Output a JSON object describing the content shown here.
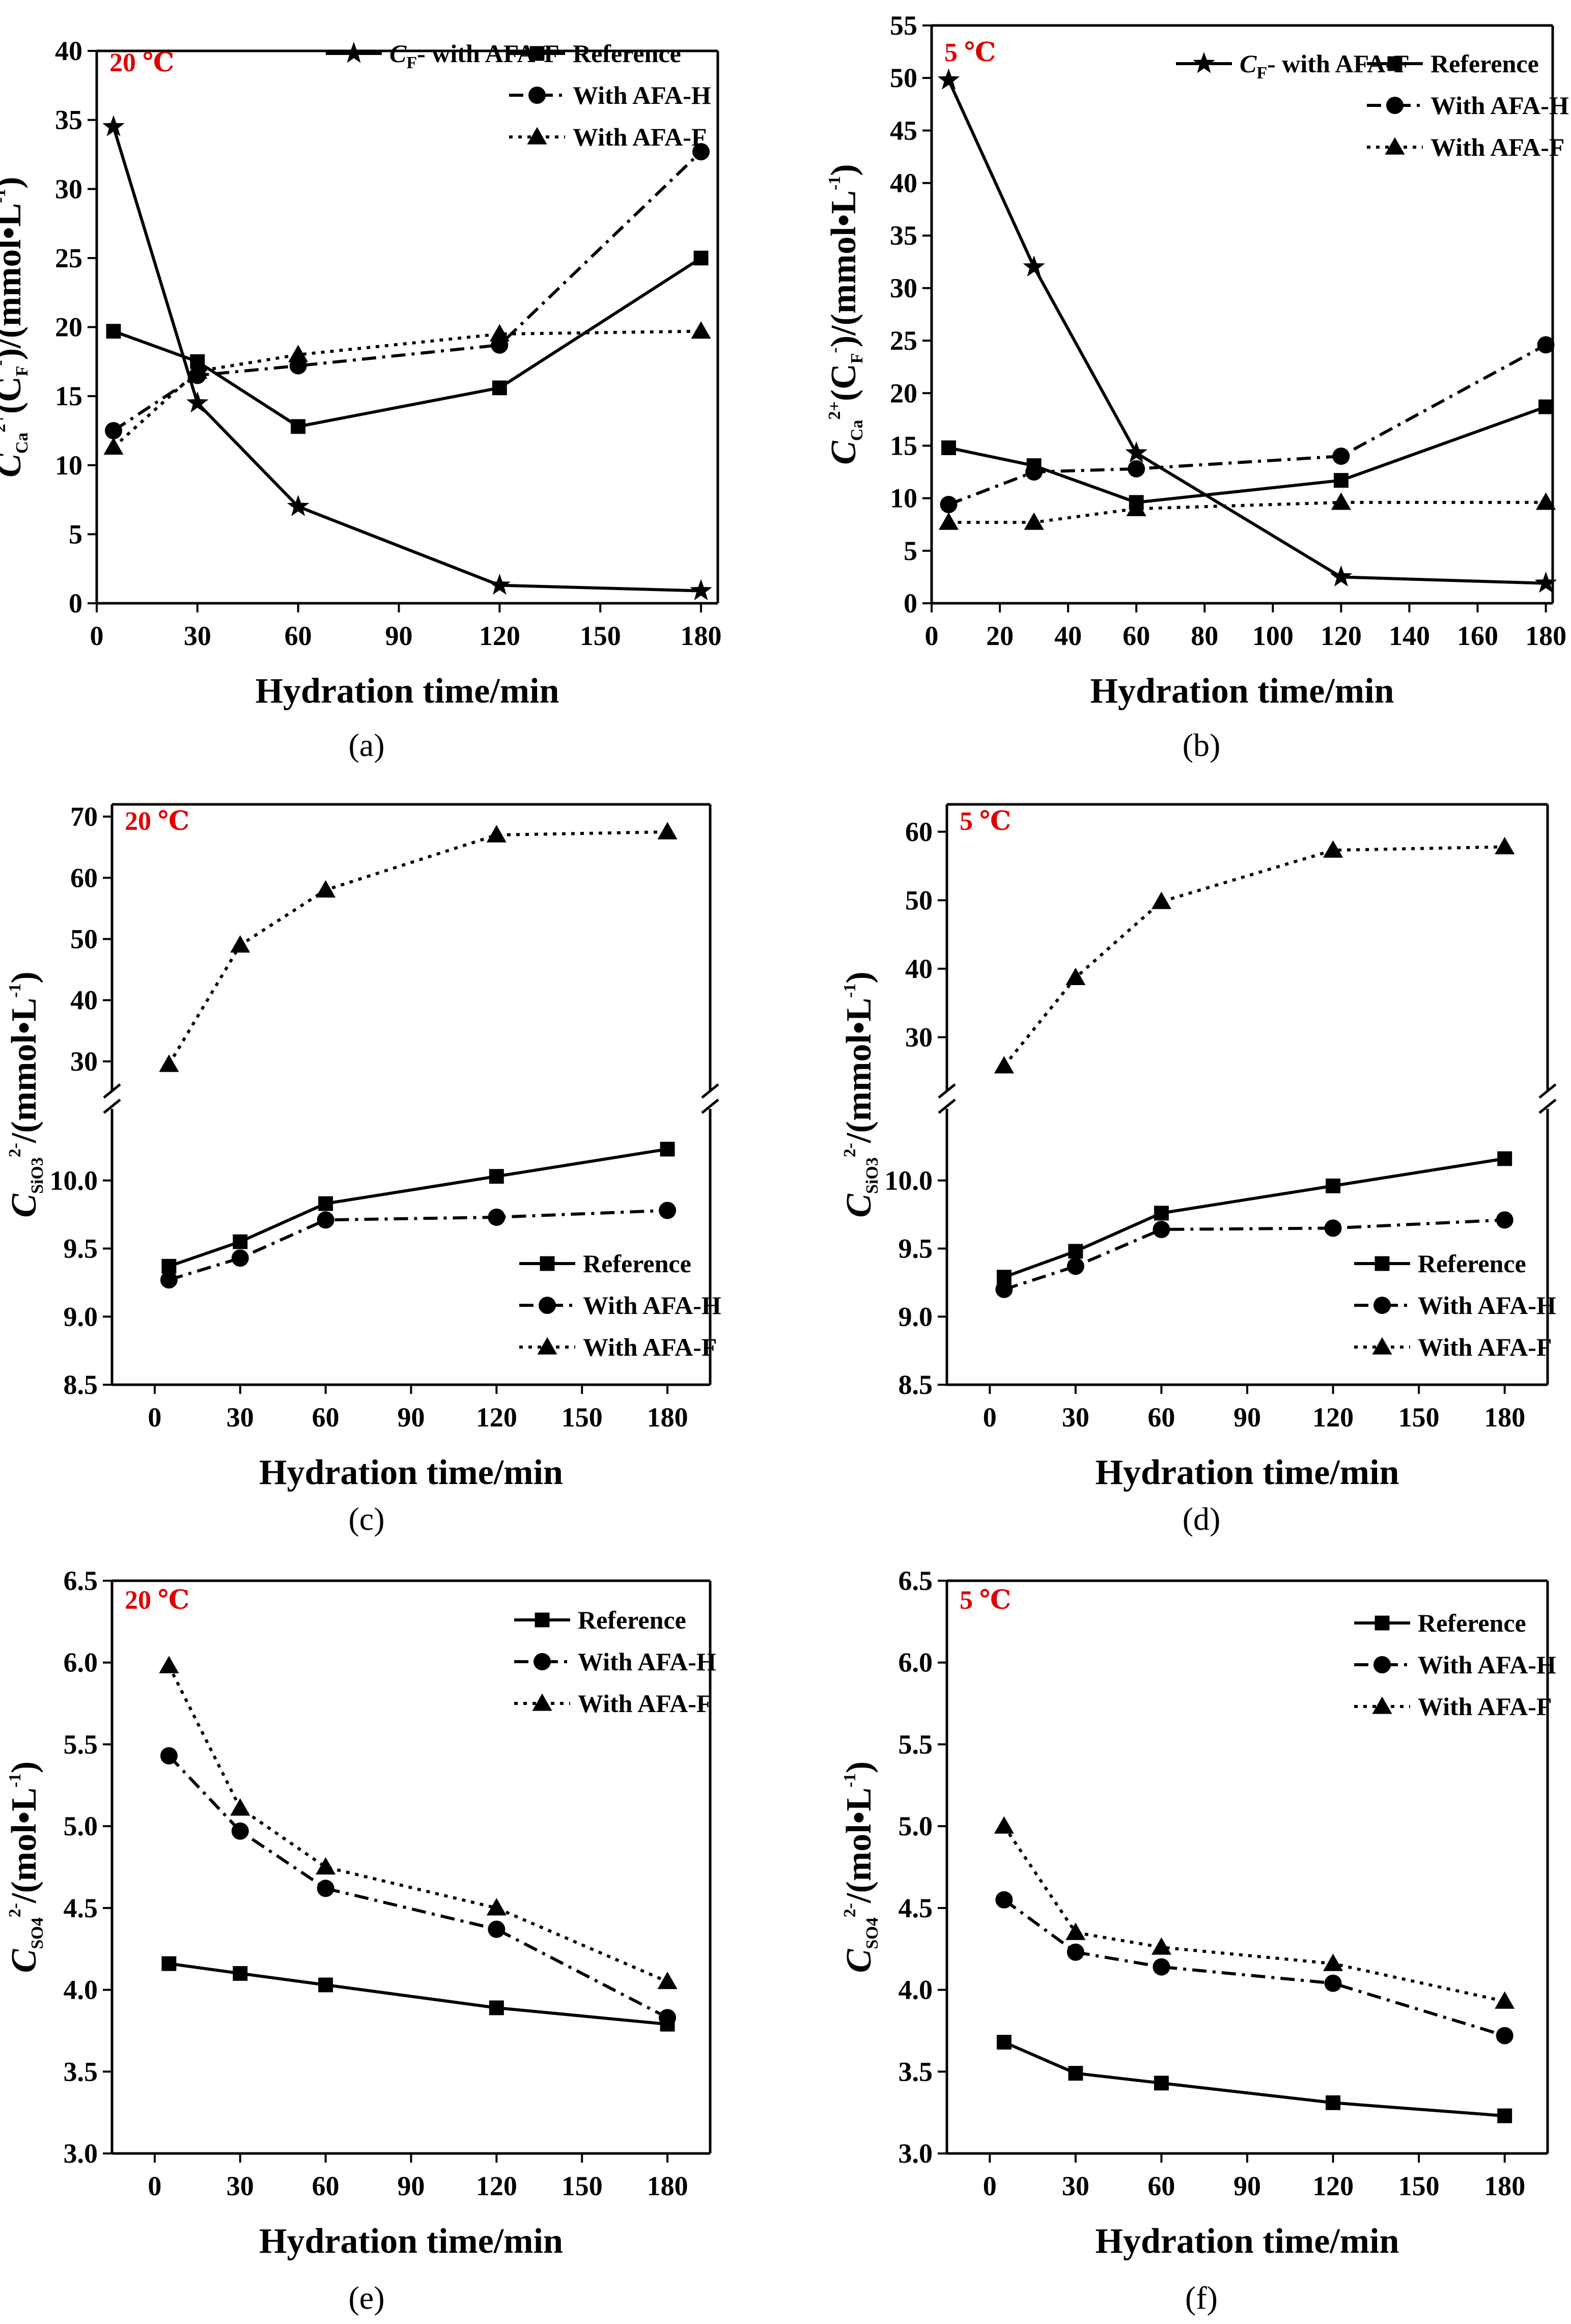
{
  "colors": {
    "temperature_label": "#e00000",
    "ink": "#000000"
  },
  "chart_data": [
    {
      "id": "a",
      "caption": "(a)",
      "type": "line",
      "temperature": "20 ℃",
      "xlabel": "Hydration time/min",
      "ylabel_main": "C",
      "ylabel_sub": "Ca",
      "ylabel_sup": "2+",
      "ylabel_mid": "(C",
      "ylabel_sub2": "F",
      "ylabel_sup2": "-",
      "ylabel_tail": ")/(mmol•L",
      "ylabel_sup3": "-1",
      "ylabel_end": ")",
      "xlim": [
        0,
        185
      ],
      "xticks": [
        0,
        30,
        60,
        90,
        120,
        150,
        180
      ],
      "ylim": [
        0,
        40
      ],
      "yticks": [
        0,
        5,
        10,
        15,
        20,
        25,
        30,
        35,
        40
      ],
      "legend_position": "top-right",
      "series": [
        {
          "name": "CF- with AFA-F",
          "legend_main": "C",
          "legend_sub": "F",
          "legend_tail": "- with AFA-F",
          "marker": "star",
          "dash": "solid",
          "legend_row": 0,
          "legend_col": 0,
          "x": [
            5,
            30,
            60,
            120,
            180
          ],
          "y": [
            34.5,
            14.5,
            7,
            1.3,
            0.9
          ]
        },
        {
          "name": "Reference",
          "marker": "square",
          "dash": "solid",
          "legend_row": 0,
          "legend_col": 1,
          "x": [
            5,
            30,
            60,
            120,
            180
          ],
          "y": [
            19.7,
            17.5,
            12.8,
            15.6,
            25
          ]
        },
        {
          "name": "With AFA-H",
          "marker": "circle",
          "dash": "dashdot",
          "legend_row": 1,
          "legend_col": 1,
          "x": [
            5,
            30,
            60,
            120,
            180
          ],
          "y": [
            12.5,
            16.5,
            17.2,
            18.7,
            32.7
          ]
        },
        {
          "name": "With AFA-F",
          "marker": "triangle",
          "dash": "dotted",
          "legend_row": 2,
          "legend_col": 1,
          "x": [
            5,
            30,
            60,
            120,
            180
          ],
          "y": [
            11.3,
            16.8,
            18,
            19.5,
            19.7
          ]
        }
      ]
    },
    {
      "id": "b",
      "caption": "(b)",
      "type": "line",
      "temperature": "5 ℃",
      "xlabel": "Hydration time/min",
      "ylabel_main": "C",
      "ylabel_sub": "Ca",
      "ylabel_sup": "2+",
      "ylabel_mid": "(C",
      "ylabel_sub2": "F",
      "ylabel_sup2": "-",
      "ylabel_tail": ")/(mmol•L",
      "ylabel_sup3": "-1",
      "ylabel_end": ")",
      "xlim": [
        0,
        182
      ],
      "xticks": [
        0,
        20,
        40,
        60,
        80,
        100,
        120,
        140,
        160,
        180
      ],
      "ylim": [
        0,
        55
      ],
      "yticks": [
        0,
        5,
        10,
        15,
        20,
        25,
        30,
        35,
        40,
        45,
        50,
        55
      ],
      "legend_position": "top-right",
      "series": [
        {
          "name": "CF- with AFA-F",
          "legend_main": "C",
          "legend_sub": "F",
          "legend_tail": "- with AFA-F",
          "marker": "star",
          "dash": "solid",
          "legend_row": 0,
          "legend_col": 0,
          "x": [
            5,
            30,
            60,
            120,
            180
          ],
          "y": [
            49.8,
            32,
            14.3,
            2.5,
            1.9
          ]
        },
        {
          "name": "Reference",
          "marker": "square",
          "dash": "solid",
          "legend_row": 0,
          "legend_col": 1,
          "x": [
            5,
            30,
            60,
            120,
            180
          ],
          "y": [
            14.8,
            13.1,
            9.6,
            11.7,
            18.7
          ]
        },
        {
          "name": "With AFA-H",
          "marker": "circle",
          "dash": "dashdot",
          "legend_row": 1,
          "legend_col": 1,
          "x": [
            5,
            30,
            60,
            120,
            180
          ],
          "y": [
            9.4,
            12.5,
            12.8,
            14,
            24.6
          ]
        },
        {
          "name": "With AFA-F",
          "marker": "triangle",
          "dash": "dotted",
          "legend_row": 2,
          "legend_col": 1,
          "x": [
            5,
            30,
            60,
            120,
            180
          ],
          "y": [
            7.7,
            7.7,
            9,
            9.6,
            9.6
          ]
        }
      ]
    },
    {
      "id": "c",
      "caption": "(c)",
      "type": "line",
      "temperature": "20 ℃",
      "broken_axis": true,
      "xlabel": "Hydration time/min",
      "ylabel_main": "C",
      "ylabel_sub": "SiO3",
      "ylabel_sup": "2-",
      "ylabel_tail": "/(mmol•L",
      "ylabel_sup3": "-1",
      "ylabel_end": ")",
      "xlim": [
        -15,
        195
      ],
      "xticks": [
        0,
        30,
        60,
        90,
        120,
        150,
        180
      ],
      "ylim_lower": [
        8.5,
        10.5
      ],
      "yticks_lower": [
        "8.5",
        "9.0",
        "9.5",
        "10.0"
      ],
      "ylim_upper": [
        25,
        72
      ],
      "yticks_upper": [
        "30",
        "40",
        "50",
        "60",
        "70"
      ],
      "legend_position": "bottom-right",
      "series": [
        {
          "name": "Reference",
          "marker": "square",
          "dash": "solid",
          "legend_row": 0,
          "legend_col": 0,
          "x": [
            5,
            30,
            60,
            120,
            180
          ],
          "y": [
            9.37,
            9.55,
            9.83,
            10.03,
            10.23
          ]
        },
        {
          "name": "With AFA-H",
          "marker": "circle",
          "dash": "dashdot",
          "legend_row": 1,
          "legend_col": 0,
          "x": [
            5,
            30,
            60,
            120,
            180
          ],
          "y": [
            9.27,
            9.43,
            9.71,
            9.73,
            9.78
          ]
        },
        {
          "name": "With AFA-F",
          "marker": "triangle",
          "dash": "dotted",
          "legend_row": 2,
          "legend_col": 0,
          "x": [
            5,
            30,
            60,
            120,
            180
          ],
          "y": [
            29.5,
            49,
            58,
            67,
            67.5
          ]
        }
      ]
    },
    {
      "id": "d",
      "caption": "(d)",
      "type": "line",
      "temperature": "5 ℃",
      "broken_axis": true,
      "xlabel": "Hydration time/min",
      "ylabel_main": "C",
      "ylabel_sub": "SiO3",
      "ylabel_sup": "2-",
      "ylabel_tail": "/(mmol•L",
      "ylabel_sup3": "-1",
      "ylabel_end": ")",
      "xlim": [
        -15,
        195
      ],
      "xticks": [
        0,
        30,
        60,
        90,
        120,
        150,
        180
      ],
      "ylim_lower": [
        8.5,
        10.5
      ],
      "yticks_lower": [
        "8.5",
        "9.0",
        "9.5",
        "10.0"
      ],
      "ylim_upper": [
        22,
        64
      ],
      "yticks_upper": [
        "30",
        "40",
        "50",
        "60"
      ],
      "legend_position": "bottom-right",
      "series": [
        {
          "name": "Reference",
          "marker": "square",
          "dash": "solid",
          "legend_row": 0,
          "legend_col": 0,
          "x": [
            5,
            30,
            60,
            120,
            180
          ],
          "y": [
            9.29,
            9.48,
            9.76,
            9.96,
            10.16
          ]
        },
        {
          "name": "With AFA-H",
          "marker": "circle",
          "dash": "dashdot",
          "legend_row": 1,
          "legend_col": 0,
          "x": [
            5,
            30,
            60,
            120,
            180
          ],
          "y": [
            9.2,
            9.37,
            9.64,
            9.65,
            9.71
          ]
        },
        {
          "name": "With AFA-F",
          "marker": "triangle",
          "dash": "dotted",
          "legend_row": 2,
          "legend_col": 0,
          "x": [
            5,
            30,
            60,
            120,
            180
          ],
          "y": [
            25.8,
            38.7,
            49.8,
            57.3,
            57.8
          ]
        }
      ]
    },
    {
      "id": "e",
      "caption": "(e)",
      "type": "line",
      "temperature": "20 ℃",
      "xlabel": "Hydration time/min",
      "ylabel_main": "C",
      "ylabel_sub": "SO4",
      "ylabel_sup": "2-",
      "ylabel_tail": "/(mol•L",
      "ylabel_sup3": "-1",
      "ylabel_end": ")",
      "xlim": [
        -15,
        195
      ],
      "xticks": [
        0,
        30,
        60,
        90,
        120,
        150,
        180
      ],
      "ylim": [
        3.0,
        6.5
      ],
      "yticks": [
        "3.0",
        "3.5",
        "4.0",
        "4.5",
        "5.0",
        "5.5",
        "6.0",
        "6.5"
      ],
      "legend_position": "top-right",
      "series": [
        {
          "name": "Reference",
          "marker": "square",
          "dash": "solid",
          "legend_row": 0,
          "legend_col": 0,
          "x": [
            5,
            30,
            60,
            120,
            180
          ],
          "y": [
            4.16,
            4.1,
            4.03,
            3.89,
            3.79
          ]
        },
        {
          "name": "With AFA-H",
          "marker": "circle",
          "dash": "dashdot",
          "legend_row": 1,
          "legend_col": 0,
          "x": [
            5,
            30,
            60,
            120,
            180
          ],
          "y": [
            5.43,
            4.97,
            4.62,
            4.37,
            3.83
          ]
        },
        {
          "name": "With AFA-F",
          "marker": "triangle",
          "dash": "dotted",
          "legend_row": 2,
          "legend_col": 0,
          "x": [
            5,
            30,
            60,
            120,
            180
          ],
          "y": [
            5.98,
            5.11,
            4.75,
            4.5,
            4.05
          ]
        }
      ]
    },
    {
      "id": "f",
      "caption": "(f)",
      "type": "line",
      "temperature": "5 ℃",
      "xlabel": "Hydration time/min",
      "ylabel_main": "C",
      "ylabel_sub": "SO4",
      "ylabel_sup": "2-",
      "ylabel_tail": "/(mol•L",
      "ylabel_sup3": "-1",
      "ylabel_end": ")",
      "xlim": [
        -15,
        195
      ],
      "xticks": [
        0,
        30,
        60,
        90,
        120,
        150,
        180
      ],
      "ylim": [
        3.0,
        6.5
      ],
      "yticks": [
        "3.0",
        "3.5",
        "4.0",
        "4.5",
        "5.0",
        "5.5",
        "6.0",
        "6.5"
      ],
      "legend_position": "top-right",
      "series": [
        {
          "name": "Reference",
          "marker": "square",
          "dash": "solid",
          "legend_row": 0,
          "legend_col": 0,
          "x": [
            5,
            30,
            60,
            120,
            180
          ],
          "y": [
            3.68,
            3.49,
            3.43,
            3.31,
            3.23
          ]
        },
        {
          "name": "With AFA-H",
          "marker": "circle",
          "dash": "dashdot",
          "legend_row": 1,
          "legend_col": 0,
          "x": [
            5,
            30,
            60,
            120,
            180
          ],
          "y": [
            4.55,
            4.23,
            4.14,
            4.04,
            3.72
          ]
        },
        {
          "name": "With AFA-F",
          "marker": "triangle",
          "dash": "dotted",
          "legend_row": 2,
          "legend_col": 0,
          "x": [
            5,
            30,
            60,
            120,
            180
          ],
          "y": [
            5.0,
            4.35,
            4.26,
            4.16,
            3.93
          ]
        }
      ]
    }
  ]
}
